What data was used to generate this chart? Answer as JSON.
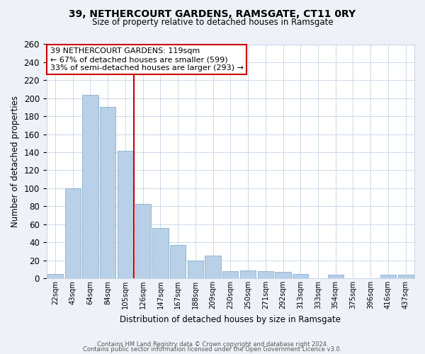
{
  "title": "39, NETHERCOURT GARDENS, RAMSGATE, CT11 0RY",
  "subtitle": "Size of property relative to detached houses in Ramsgate",
  "xlabel": "Distribution of detached houses by size in Ramsgate",
  "ylabel": "Number of detached properties",
  "bar_labels": [
    "22sqm",
    "43sqm",
    "64sqm",
    "84sqm",
    "105sqm",
    "126sqm",
    "147sqm",
    "167sqm",
    "188sqm",
    "209sqm",
    "230sqm",
    "250sqm",
    "271sqm",
    "292sqm",
    "313sqm",
    "333sqm",
    "354sqm",
    "375sqm",
    "396sqm",
    "416sqm",
    "437sqm"
  ],
  "bar_heights": [
    5,
    100,
    204,
    190,
    142,
    83,
    56,
    37,
    20,
    25,
    8,
    9,
    8,
    7,
    5,
    0,
    4,
    0,
    0,
    4,
    4
  ],
  "bar_color": "#b8d0e8",
  "bar_edge_color": "#8ab0d0",
  "vline_x": 4.5,
  "vline_color": "#cc0000",
  "annotation_text": "39 NETHERCOURT GARDENS: 119sqm\n← 67% of detached houses are smaller (599)\n33% of semi-detached houses are larger (293) →",
  "annotation_box_color": "#ffffff",
  "annotation_box_edge": "#cc0000",
  "ylim": [
    0,
    260
  ],
  "yticks": [
    0,
    20,
    40,
    60,
    80,
    100,
    120,
    140,
    160,
    180,
    200,
    220,
    240,
    260
  ],
  "footer_line1": "Contains HM Land Registry data © Crown copyright and database right 2024.",
  "footer_line2": "Contains public sector information licensed under the Open Government Licence v3.0.",
  "background_color": "#eef2f8",
  "plot_bg_color": "#ffffff",
  "grid_color": "#ccd8e8"
}
